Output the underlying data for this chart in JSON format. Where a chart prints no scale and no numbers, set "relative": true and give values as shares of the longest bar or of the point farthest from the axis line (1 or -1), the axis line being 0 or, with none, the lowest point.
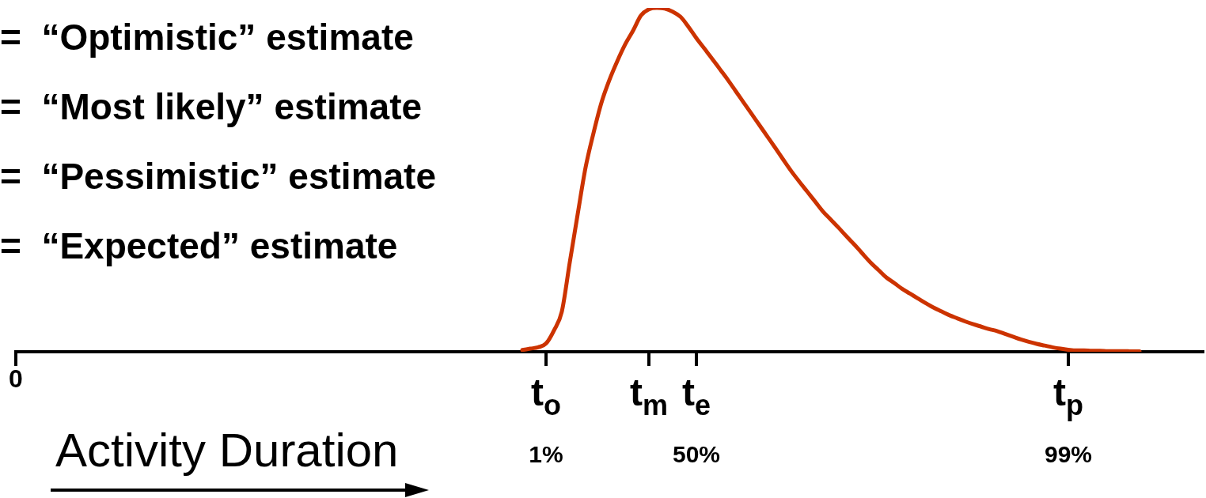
{
  "chart_data": {
    "type": "line",
    "relative": true,
    "xlabel": "Activity Duration",
    "categories": [
      "0",
      null,
      null,
      null,
      null,
      null,
      null,
      null,
      null,
      null,
      null,
      null,
      null,
      null,
      null,
      null,
      null,
      null,
      null,
      null,
      null,
      null,
      null,
      null,
      null,
      null,
      null,
      null,
      null,
      null,
      null,
      null,
      null,
      null,
      null,
      null,
      null,
      null,
      null,
      null,
      null,
      null,
      null,
      null,
      null,
      null,
      null,
      null,
      null,
      null,
      null,
      null,
      null,
      null,
      null,
      null,
      null,
      null,
      null,
      null,
      null,
      null,
      null,
      null,
      null,
      null,
      null,
      "t$_{o}$\n1%",
      null,
      null,
      null,
      null,
      null,
      null,
      null,
      null,
      null,
      null,
      null,
      null,
      "t$_{m}$",
      null,
      null,
      null,
      null,
      null,
      "t$_{e}$\n50%",
      null,
      null,
      null,
      null,
      null,
      null,
      null,
      null,
      null,
      null,
      null,
      null,
      null,
      null,
      null,
      null,
      null,
      null,
      null,
      null,
      null,
      null,
      null,
      null,
      null,
      null,
      null,
      null,
      null,
      null,
      null,
      null,
      null,
      null,
      null,
      null,
      null,
      null,
      null,
      null,
      null,
      null,
      null,
      null,
      null,
      null,
      "t$_{p}$\n99%",
      null,
      null,
      null,
      null,
      null,
      null,
      null,
      null,
      null,
      null,
      null,
      null,
      null,
      null,
      null,
      null,
      null
    ],
    "series": [
      {
        "color": "#cc3300",
        "values": [
          null,
          null,
          null,
          null,
          null,
          null,
          null,
          null,
          null,
          null,
          null,
          null,
          null,
          null,
          null,
          null,
          null,
          null,
          null,
          null,
          null,
          null,
          null,
          null,
          null,
          null,
          null,
          null,
          null,
          null,
          null,
          null,
          null,
          null,
          null,
          null,
          null,
          null,
          null,
          null,
          null,
          null,
          null,
          null,
          null,
          null,
          null,
          null,
          null,
          null,
          null,
          null,
          null,
          null,
          null,
          null,
          null,
          null,
          null,
          null,
          null,
          null,
          null,
          null,
          0.005,
          0.009,
          0.013,
          0.024,
          0.062,
          0.117,
          0.26,
          0.4,
          0.536,
          0.636,
          0.724,
          0.79,
          0.845,
          0.894,
          0.934,
          0.978,
          0.996,
          1,
          0.998,
          0.989,
          0.974,
          0.945,
          0.912,
          0.882,
          0.852,
          0.821,
          0.79,
          0.757,
          0.724,
          0.691,
          0.658,
          0.625,
          0.592,
          0.558,
          0.525,
          0.495,
          0.466,
          0.437,
          0.408,
          0.384,
          0.36,
          0.335,
          0.311,
          0.285,
          0.26,
          0.238,
          0.216,
          0.2,
          0.183,
          0.169,
          0.155,
          0.141,
          0.128,
          0.117,
          0.106,
          0.097,
          0.088,
          0.08,
          0.073,
          0.066,
          0.06,
          0.052,
          0.044,
          0.036,
          0.029,
          0.023,
          0.018,
          0.013,
          0.009,
          0.006,
          0.004,
          0.004,
          0.003,
          0.003,
          0.002,
          0.002,
          0.002,
          0.001,
          0.001,
          null,
          null,
          null,
          null,
          null,
          null,
          null,
          null
        ]
      }
    ],
    "annotations": [
      "=  “Optimistic” estimate",
      "=  “Most likely” estimate",
      "=  “Pessimistic” estimate",
      "=  “Expected” estimate"
    ],
    "marker": "none",
    "grid": false,
    "legend": false
  }
}
